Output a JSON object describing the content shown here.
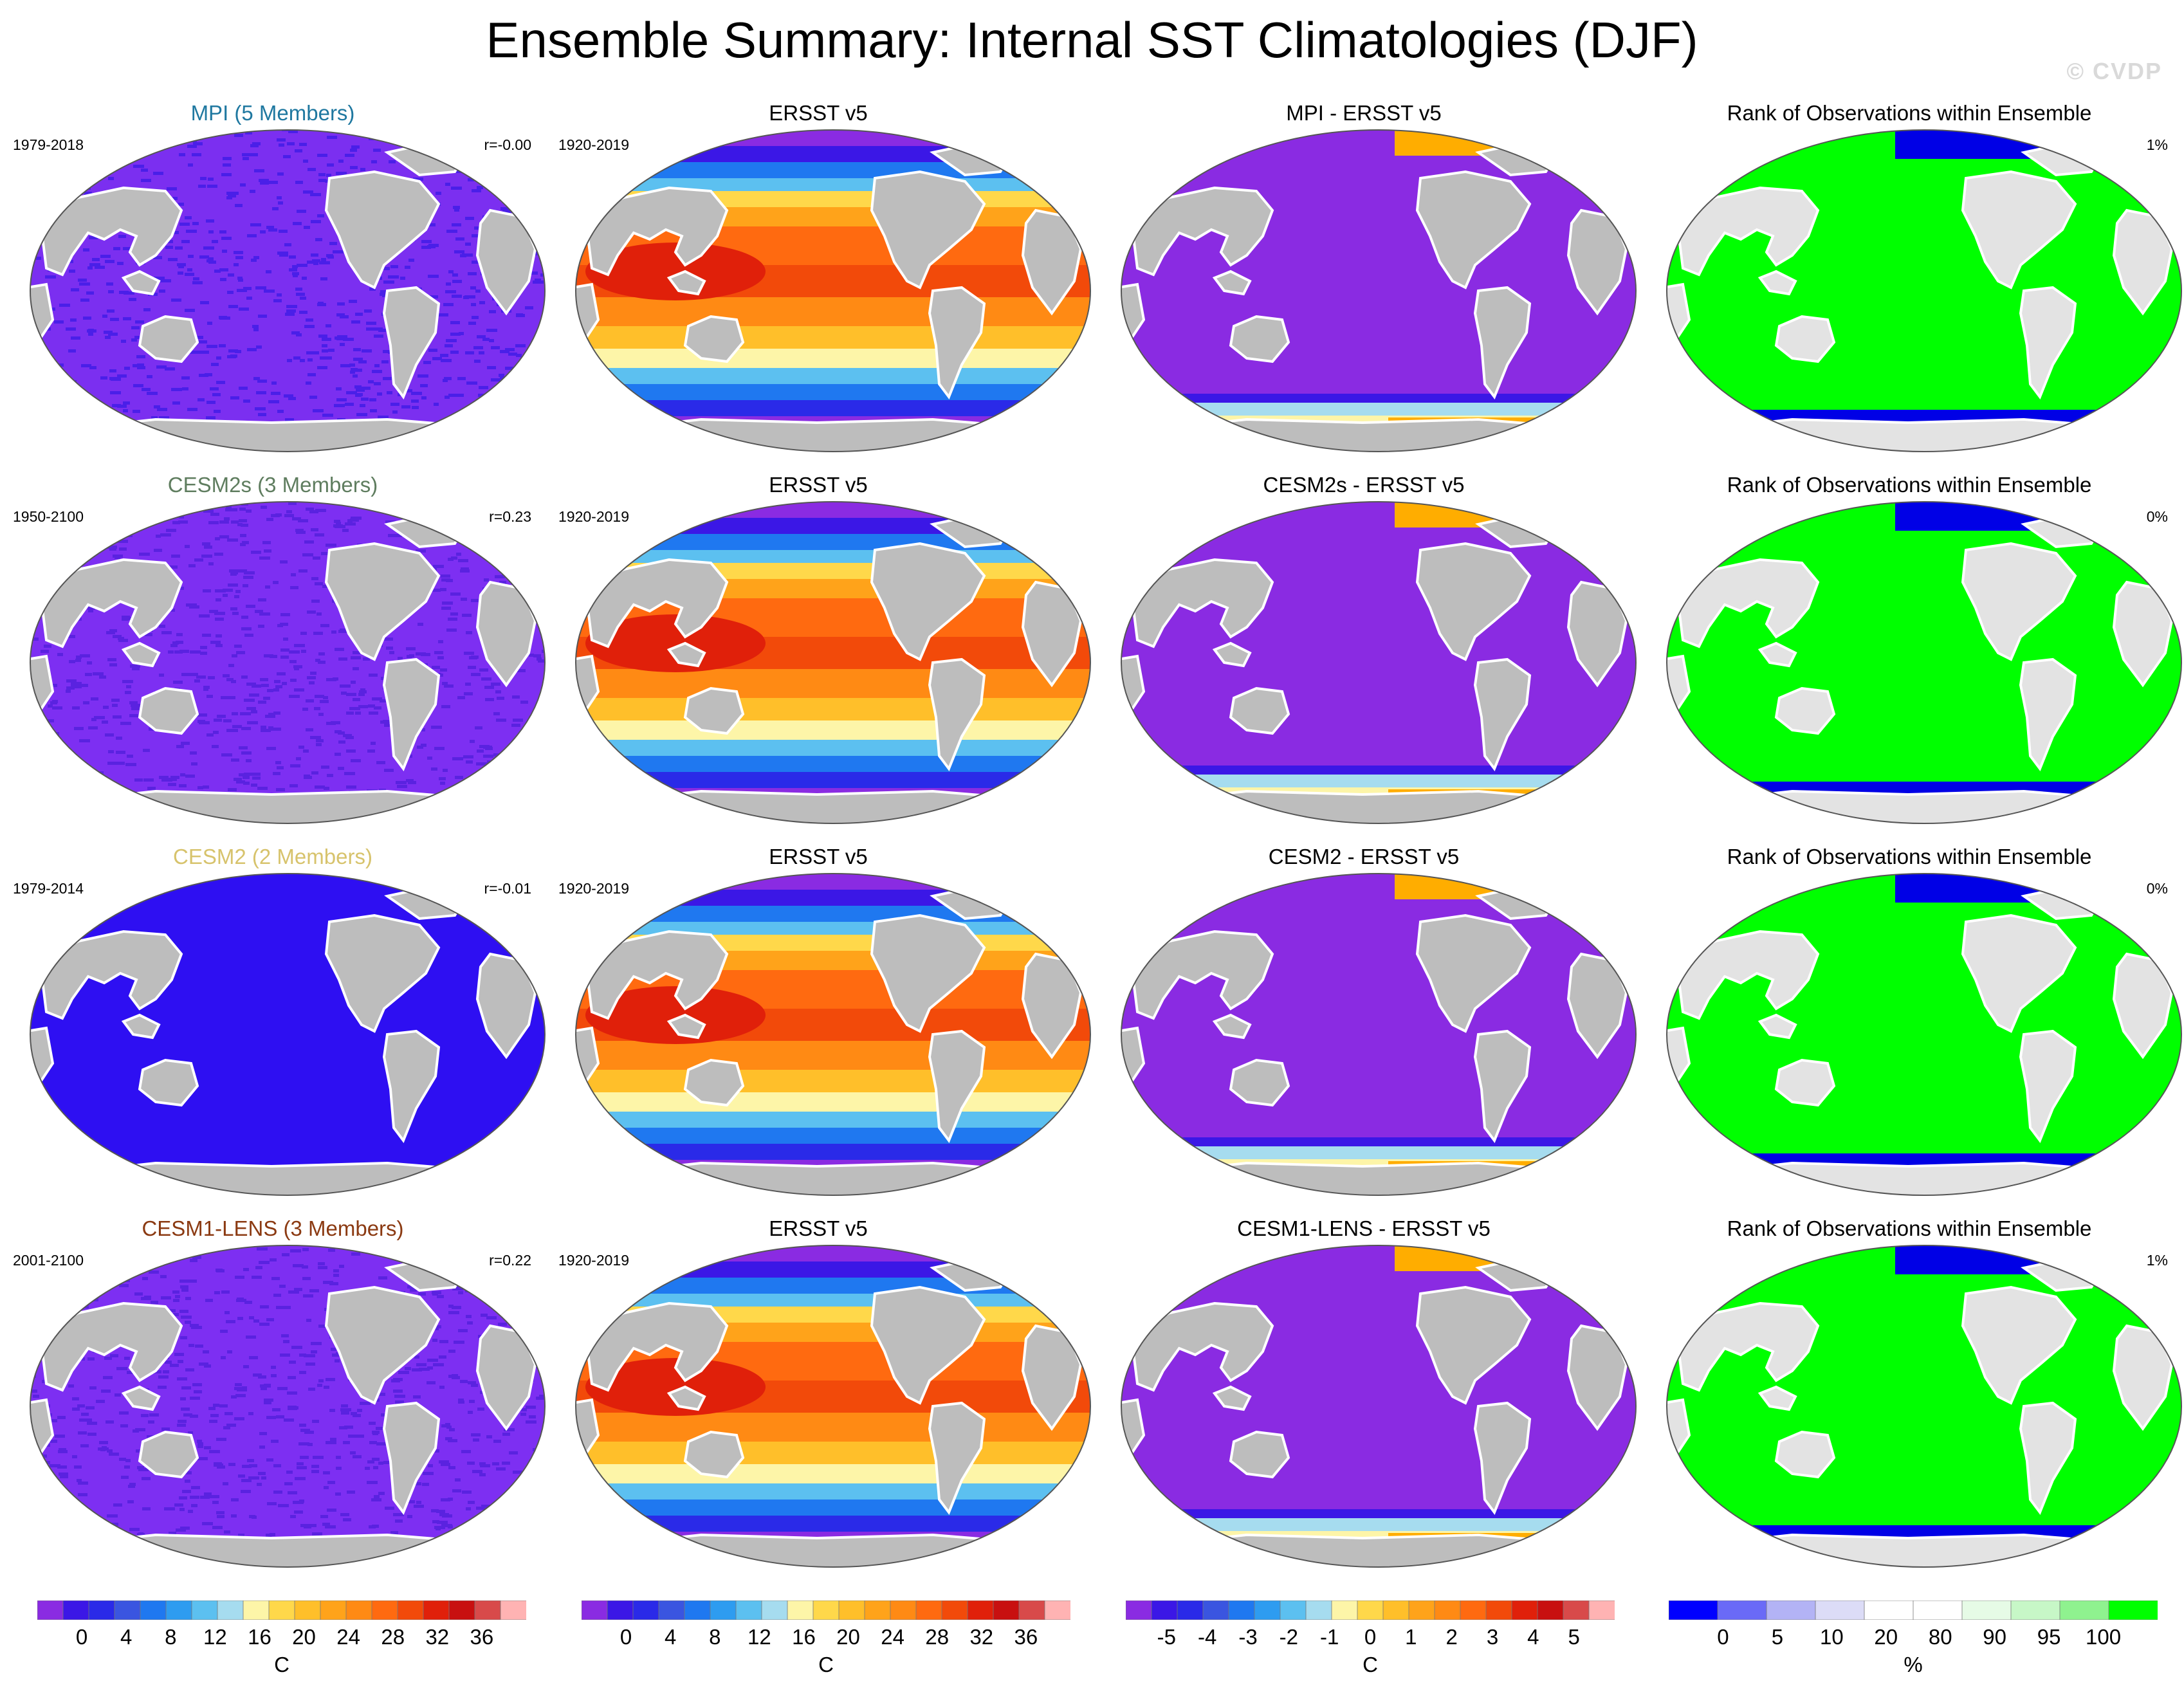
{
  "title": "Ensemble Summary: Internal SST Climatologies (DJF)",
  "watermark": "© CVDP",
  "colors": {
    "land": "#bdbdbd",
    "rank_land": "#e3e3e3",
    "purple": "#8a2be2",
    "indigo": "#3a10f0",
    "green": "#00ff00",
    "blue": "#0000e6",
    "orange": "#ffad00",
    "cesm2s_title": "#5d7c5d",
    "cesm2_title": "#d9c36a",
    "mpi_title": "#1a7fa0",
    "lens_title": "#8b4513"
  },
  "rows": [
    {
      "model": {
        "title": "MPI (5 Members)",
        "title_color": "#1f78a0",
        "years": "1979-2018",
        "r": "r=-0.00",
        "style": "noise",
        "base": "#7b2ff0",
        "speck": "#4a1fe8"
      },
      "obs": {
        "title": "ERSST v5",
        "years": "1920-2019"
      },
      "diff": {
        "title": "MPI - ERSST v5"
      },
      "rank": {
        "title": "Rank of Observations within Ensemble",
        "pct": "1%"
      }
    },
    {
      "model": {
        "title": "CESM2s (3 Members)",
        "title_color": "#5f7d5f",
        "years": "1950-2100",
        "r": "r=0.23",
        "style": "noise",
        "base": "#7d2ff2",
        "speck": "#5a22e0"
      },
      "obs": {
        "title": "ERSST v5",
        "years": "1920-2019"
      },
      "diff": {
        "title": "CESM2s - ERSST v5"
      },
      "rank": {
        "title": "Rank of Observations within Ensemble",
        "pct": "0%"
      }
    },
    {
      "model": {
        "title": "CESM2 (2 Members)",
        "title_color": "#d7c36c",
        "years": "1979-2014",
        "r": "r=-0.01",
        "style": "solid",
        "base": "#2e0ff2",
        "speck": "#2e0ff2"
      },
      "obs": {
        "title": "ERSST v5",
        "years": "1920-2019"
      },
      "diff": {
        "title": "CESM2 - ERSST v5"
      },
      "rank": {
        "title": "Rank of Observations within Ensemble",
        "pct": "0%"
      }
    },
    {
      "model": {
        "title": "CESM1-LENS (3 Members)",
        "title_color": "#8b3a12",
        "years": "2001-2100",
        "r": "r=0.22",
        "style": "noise",
        "base": "#7d2ff2",
        "speck": "#5a22e0"
      },
      "obs": {
        "title": "ERSST v5",
        "years": "1920-2019"
      },
      "diff": {
        "title": "CESM1-LENS - ERSST v5"
      },
      "rank": {
        "title": "Rank of Observations within Ensemble",
        "pct": "1%"
      }
    }
  ],
  "colorbars": [
    {
      "unit": "C",
      "colors": [
        "#8a2be2",
        "#3b17e6",
        "#2a2ae8",
        "#3a55e0",
        "#1f78f0",
        "#2e9cf0",
        "#5cc0f0",
        "#a6dcef",
        "#fdf5a8",
        "#ffd84a",
        "#ffbf2a",
        "#ffa31a",
        "#ff8a14",
        "#ff6a10",
        "#f24a0a",
        "#e0200a",
        "#c81010",
        "#d84a4a",
        "#ffb3b3"
      ],
      "labels": [
        "0",
        "4",
        "8",
        "12",
        "16",
        "20",
        "24",
        "28",
        "32",
        "36"
      ]
    },
    {
      "unit": "C",
      "colors": [
        "#8a2be2",
        "#3b17e6",
        "#2a2ae8",
        "#3a55e0",
        "#1f78f0",
        "#2e9cf0",
        "#5cc0f0",
        "#a6dcef",
        "#fdf5a8",
        "#ffd84a",
        "#ffbf2a",
        "#ffa31a",
        "#ff8a14",
        "#ff6a10",
        "#f24a0a",
        "#e0200a",
        "#c81010",
        "#d84a4a",
        "#ffb3b3"
      ],
      "labels": [
        "0",
        "4",
        "8",
        "12",
        "16",
        "20",
        "24",
        "28",
        "32",
        "36"
      ]
    },
    {
      "unit": "C",
      "colors": [
        "#8a2be2",
        "#3b17e6",
        "#2a2ae8",
        "#3a55e0",
        "#1f78f0",
        "#2e9cf0",
        "#5cc0f0",
        "#a6dcef",
        "#fdf5a8",
        "#ffd84a",
        "#ffbf2a",
        "#ffa31a",
        "#ff8a14",
        "#ff6a10",
        "#f24a0a",
        "#e0200a",
        "#c81010",
        "#d84a4a",
        "#ffb3b3"
      ],
      "labels": [
        "-5",
        "-4",
        "-3",
        "-2",
        "-1",
        "0",
        "1",
        "2",
        "3",
        "4",
        "5"
      ]
    },
    {
      "unit": "%",
      "colors": [
        "#0000ff",
        "#6a6af7",
        "#b3b3f5",
        "#dcdcf7",
        "#ffffff",
        "#ffffff",
        "#e6fbe6",
        "#c7f7c7",
        "#8ff28f",
        "#00ff00"
      ],
      "labels": [
        "0",
        "5",
        "10",
        "20",
        "80",
        "90",
        "95",
        "100"
      ]
    }
  ]
}
